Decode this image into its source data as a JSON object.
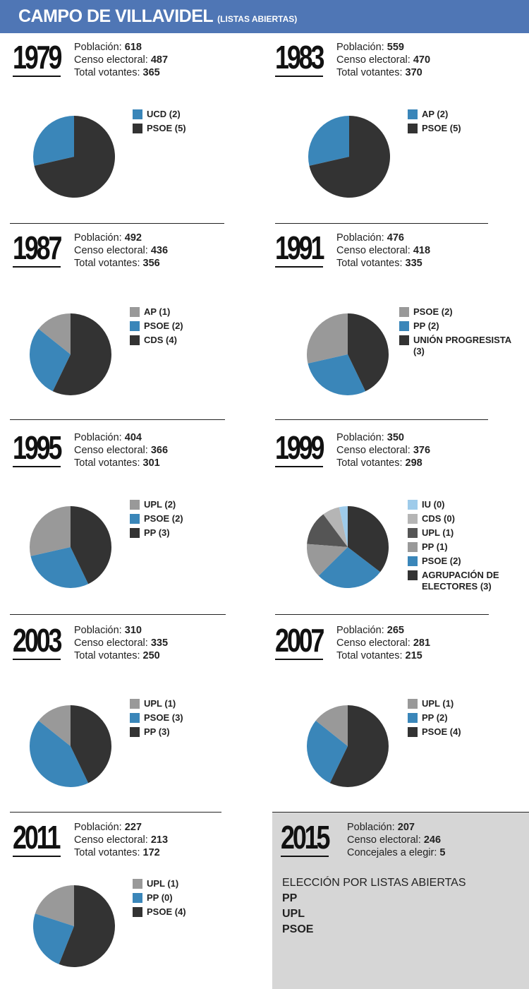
{
  "header": {
    "title": "CAMPO DE VILLAVIDEL",
    "subtitle": "(LISTAS ABIERTAS)"
  },
  "labels": {
    "poblacion": "Población: ",
    "censo": "Censo electoral: ",
    "votantes": "Total votantes: ",
    "concejales": "Concejales a elegir: "
  },
  "colors": {
    "dark": "#333333",
    "blue": "#3a86b9",
    "gray": "#999999",
    "lightgray": "#b5b5b5",
    "darkgray": "#555555",
    "lightblue": "#9ecbea",
    "header": "#4f76b5"
  },
  "chart_data": [
    {
      "type": "pie",
      "year": "1979",
      "poblacion": "618",
      "censo": "487",
      "votantes": "365",
      "slices": [
        {
          "label": "UCD (2)",
          "value": 2,
          "color": "#3a86b9"
        },
        {
          "label": "PSOE (5)",
          "value": 5,
          "color": "#333333"
        }
      ]
    },
    {
      "type": "pie",
      "year": "1983",
      "poblacion": "559",
      "censo": "470",
      "votantes": "370",
      "slices": [
        {
          "label": "AP (2)",
          "value": 2,
          "color": "#3a86b9"
        },
        {
          "label": "PSOE (5)",
          "value": 5,
          "color": "#333333"
        }
      ]
    },
    {
      "type": "pie",
      "year": "1987",
      "poblacion": "492",
      "censo": "436",
      "votantes": "356",
      "slices": [
        {
          "label": "AP (1)",
          "value": 1,
          "color": "#999999"
        },
        {
          "label": "PSOE (2)",
          "value": 2,
          "color": "#3a86b9"
        },
        {
          "label": "CDS (4)",
          "value": 4,
          "color": "#333333"
        }
      ]
    },
    {
      "type": "pie",
      "year": "1991",
      "poblacion": "476",
      "censo": "418",
      "votantes": "335",
      "slices": [
        {
          "label": "PSOE (2)",
          "value": 2,
          "color": "#999999"
        },
        {
          "label": "PP (2)",
          "value": 2,
          "color": "#3a86b9"
        },
        {
          "label": "UNIÓN PROGRESISTA (3)",
          "value": 3,
          "color": "#333333"
        }
      ]
    },
    {
      "type": "pie",
      "year": "1995",
      "poblacion": "404",
      "censo": "366",
      "votantes": "301",
      "slices": [
        {
          "label": "UPL (2)",
          "value": 2,
          "color": "#999999"
        },
        {
          "label": "PSOE (2)",
          "value": 2,
          "color": "#3a86b9"
        },
        {
          "label": "PP (3)",
          "value": 3,
          "color": "#333333"
        }
      ]
    },
    {
      "type": "pie",
      "year": "1999",
      "poblacion": "350",
      "censo": "376",
      "votantes": "298",
      "slices": [
        {
          "label": "IU (0)",
          "value": 0.25,
          "color": "#9ecbea"
        },
        {
          "label": "CDS (0)",
          "value": 0.5,
          "color": "#b5b5b5"
        },
        {
          "label": "UPL (1)",
          "value": 1,
          "color": "#555555"
        },
        {
          "label": "PP (1)",
          "value": 1,
          "color": "#999999"
        },
        {
          "label": "PSOE (2)",
          "value": 2,
          "color": "#3a86b9"
        },
        {
          "label": "AGRUPACIÓN DE ELECTORES (3)",
          "value": 2.6,
          "color": "#333333"
        }
      ]
    },
    {
      "type": "pie",
      "year": "2003",
      "poblacion": "310",
      "censo": "335",
      "votantes": "250",
      "slices": [
        {
          "label": "UPL (1)",
          "value": 1,
          "color": "#999999"
        },
        {
          "label": "PSOE (3)",
          "value": 3,
          "color": "#3a86b9"
        },
        {
          "label": "PP (3)",
          "value": 3,
          "color": "#333333"
        }
      ]
    },
    {
      "type": "pie",
      "year": "2007",
      "poblacion": "265",
      "censo": "281",
      "votantes": "215",
      "slices": [
        {
          "label": "UPL (1)",
          "value": 1,
          "color": "#999999"
        },
        {
          "label": "PP (2)",
          "value": 2,
          "color": "#3a86b9"
        },
        {
          "label": "PSOE (4)",
          "value": 4,
          "color": "#333333"
        }
      ]
    },
    {
      "type": "pie",
      "year": "2011",
      "poblacion": "227",
      "censo": "213",
      "votantes": "172",
      "slices": [
        {
          "label": "UPL (1)",
          "value": 1,
          "color": "#999999"
        },
        {
          "label": "PP (0)",
          "value": 1.2,
          "color": "#3a86b9"
        },
        {
          "label": "PSOE (4)",
          "value": 2.8,
          "color": "#333333"
        }
      ]
    }
  ],
  "y2015": {
    "year": "2015",
    "poblacion": "207",
    "censo": "246",
    "concejales": "5",
    "note_title": "ELECCIÓN POR LISTAS ABIERTAS",
    "lists": [
      "PP",
      "UPL",
      "PSOE"
    ]
  }
}
